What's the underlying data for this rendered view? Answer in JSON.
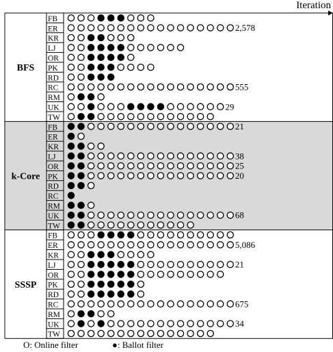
{
  "chart_data": {
    "type": "table",
    "xlabel": "Iteration",
    "legend": {
      "placement": "bottom-left",
      "items": [
        {
          "symbol": "open-circle",
          "label": "O: Online filter"
        },
        {
          "symbol": "filled-circle",
          "label": "●: Ballot filter"
        }
      ]
    },
    "colors": {
      "shade": "#d9d9d9",
      "line": "#000000"
    },
    "groups": [
      {
        "name": "BFS",
        "shaded": false,
        "rows": [
          {
            "label": "FB",
            "cells": "ooo●●●ooo",
            "value": ""
          },
          {
            "label": "ER",
            "cells": "ooooooooooooooooo",
            "value": "2,578"
          },
          {
            "label": "KR",
            "cells": "oo●●ooo",
            "value": ""
          },
          {
            "label": "LJ",
            "cells": "oo●●●●oooooo",
            "value": ""
          },
          {
            "label": "OR",
            "cells": "oo●●●●o",
            "value": ""
          },
          {
            "label": "PK",
            "cells": "oo●●●oooo",
            "value": ""
          },
          {
            "label": "RD",
            "cells": "oo●●●",
            "value": ""
          },
          {
            "label": "RC",
            "cells": "ooooooooooooooooo",
            "value": "555"
          },
          {
            "label": "RM",
            "cells": "o●●o",
            "value": ""
          },
          {
            "label": "UK",
            "cells": "oo●ooo●●●●oooooo",
            "value": "29"
          },
          {
            "label": "TW",
            "cells": "o●●oooooooooooo",
            "value": ""
          }
        ]
      },
      {
        "name": "k-Core",
        "shaded": true,
        "rows": [
          {
            "label": "FB",
            "cells": "●●ooooooooooooooo",
            "value": "21"
          },
          {
            "label": "ER",
            "cells": "●o",
            "value": ""
          },
          {
            "label": "KR",
            "cells": "●●oo",
            "value": ""
          },
          {
            "label": "LJ",
            "cells": "●●ooooooooooooooo",
            "value": "38"
          },
          {
            "label": "OR",
            "cells": "●●ooooooooooooooo",
            "value": "25"
          },
          {
            "label": "PK",
            "cells": "●●ooooooooooooooo",
            "value": "20"
          },
          {
            "label": "RD",
            "cells": "●●o",
            "value": ""
          },
          {
            "label": "RC",
            "cells": "●",
            "value": ""
          },
          {
            "label": "RM",
            "cells": "●●o",
            "value": ""
          },
          {
            "label": "UK",
            "cells": "●●ooooooooooooooo",
            "value": "68"
          },
          {
            "label": "TW",
            "cells": "●●ooooooooooo",
            "value": ""
          }
        ]
      },
      {
        "name": "SSSP",
        "shaded": false,
        "rows": [
          {
            "label": "FB",
            "cells": "ooo●●●●oooooooooo",
            "value": ""
          },
          {
            "label": "ER",
            "cells": "ooooooooooooooooo",
            "value": "5,086"
          },
          {
            "label": "KR",
            "cells": "oo●●●oooo",
            "value": ""
          },
          {
            "label": "LJ",
            "cells": "oo●●●●●oooooooooo",
            "value": "21"
          },
          {
            "label": "OR",
            "cells": "oo●●●●●ooooooooo",
            "value": ""
          },
          {
            "label": "PK",
            "cells": "oo●●●●●o",
            "value": ""
          },
          {
            "label": "RD",
            "cells": "oo●●●●●o",
            "value": ""
          },
          {
            "label": "RC",
            "cells": "ooooooooooooooooo",
            "value": "675"
          },
          {
            "label": "RM",
            "cells": "o●●oo",
            "value": ""
          },
          {
            "label": "UK",
            "cells": "o●o●ooooooooooooo",
            "value": "34"
          },
          {
            "label": "TW",
            "cells": "ooooooooooooooo",
            "value": ""
          }
        ]
      }
    ]
  }
}
